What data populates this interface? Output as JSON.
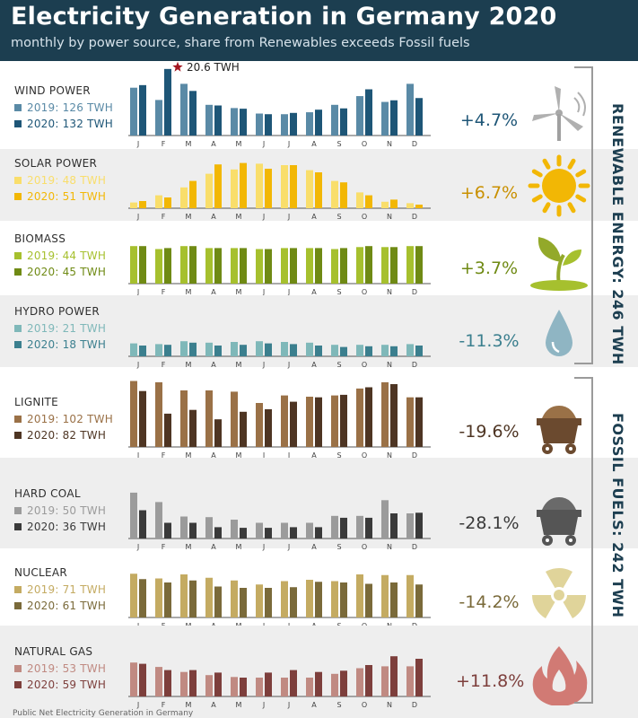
{
  "title": "Electricity Generation in Germany  2020",
  "subtitle": "monthly by power source, share from Renewables exceeds Fossil fuels",
  "footnote": "Public Net Electricity Generation in Germany",
  "groups": {
    "renewable": "RENEWABLE ENERGY: 246 TWH",
    "fossil": "FOSSIL FUELS: 242 TWH"
  },
  "peak_annotation": "20.6 TWH",
  "month_labels": [
    "J",
    "F",
    "M",
    "A",
    "M",
    "J",
    "J",
    "A",
    "S",
    "O",
    "N",
    "D"
  ],
  "colors": {
    "header": "#1c3e50",
    "star": "#a31621"
  },
  "chart_data": {
    "type": "bar",
    "title": "Electricity Generation in Germany  2020",
    "subtitle": "monthly by power source, share from Renewables exceeds Fossil fuels",
    "categories": [
      "J",
      "F",
      "M",
      "A",
      "M",
      "J",
      "J",
      "A",
      "S",
      "O",
      "N",
      "D"
    ],
    "panels": [
      {
        "name": "WIND POWER",
        "change": "+4.7%",
        "icon": "wind-turbine-icon",
        "color2019": "#5a8aa6",
        "color2020": "#1e5677",
        "pctColor": "#1e5677",
        "series": [
          {
            "name": "2019: 126 TWH",
            "values": [
              14.8,
              11.0,
              16.0,
              9.5,
              8.5,
              6.8,
              6.6,
              7.2,
              9.5,
              12.2,
              10.4,
              16.0
            ]
          },
          {
            "name": "2020: 132 TWH",
            "values": [
              15.6,
              20.6,
              13.8,
              9.3,
              8.3,
              6.6,
              7.0,
              8.0,
              8.4,
              14.3,
              10.9,
              11.6
            ]
          }
        ]
      },
      {
        "name": "SOLAR POWER",
        "change": "+6.7%",
        "icon": "sun-icon",
        "color2019": "#f9de6b",
        "color2020": "#f2b705",
        "pctColor": "#c99000",
        "series": [
          {
            "name": "2019: 48 TWH",
            "values": [
              0.8,
              1.8,
              2.9,
              4.8,
              5.4,
              6.2,
              6.0,
              5.3,
              3.8,
              2.2,
              0.9,
              0.7
            ]
          },
          {
            "name": "2020: 51 TWH",
            "values": [
              1.0,
              1.5,
              3.8,
              6.1,
              6.3,
              5.5,
              6.0,
              5.0,
              3.6,
              1.8,
              1.2,
              0.5
            ]
          }
        ]
      },
      {
        "name": "BIOMASS",
        "change": "+3.7%",
        "icon": "sprout-icon",
        "color2019": "#a6c02e",
        "color2020": "#6f8a14",
        "pctColor": "#6f8a14",
        "series": [
          {
            "name": "2019: 44 TWH",
            "values": [
              3.8,
              3.5,
              3.8,
              3.6,
              3.6,
              3.5,
              3.6,
              3.6,
              3.5,
              3.7,
              3.7,
              3.8
            ]
          },
          {
            "name": "2020: 45 TWH",
            "values": [
              3.8,
              3.6,
              3.8,
              3.6,
              3.6,
              3.5,
              3.6,
              3.6,
              3.6,
              3.8,
              3.7,
              3.8
            ]
          }
        ]
      },
      {
        "name": "HYDRO POWER",
        "change": "-11.3%",
        "icon": "water-drop-icon",
        "color2019": "#7fb8b9",
        "color2020": "#3b7f8e",
        "pctColor": "#3b7f8e",
        "series": [
          {
            "name": "2019: 21 TWH",
            "values": [
              1.8,
              1.7,
              2.1,
              1.9,
              2.0,
              2.1,
              2.0,
              1.9,
              1.6,
              1.6,
              1.6,
              1.7
            ]
          },
          {
            "name": "2020: 18 TWH",
            "values": [
              1.5,
              1.6,
              1.9,
              1.5,
              1.6,
              1.8,
              1.7,
              1.5,
              1.3,
              1.4,
              1.4,
              1.5
            ]
          }
        ]
      },
      {
        "name": "LIGNITE",
        "change": "-19.6%",
        "icon": "mine-cart-lignite-icon",
        "color2019": "#9a7147",
        "color2020": "#4e3523",
        "pctColor": "#4e3523",
        "series": [
          {
            "name": "2019: 102 TWH",
            "values": [
              10.5,
              10.3,
              9.0,
              9.0,
              8.8,
              7.0,
              8.2,
              8.0,
              8.2,
              9.3,
              10.3,
              7.9
            ]
          },
          {
            "name": "2020: 82 TWH",
            "values": [
              8.9,
              5.3,
              5.9,
              4.4,
              5.6,
              6.0,
              7.2,
              7.9,
              8.3,
              9.5,
              10.0,
              7.9
            ]
          }
        ]
      },
      {
        "name": "HARD COAL",
        "change": "-28.1%",
        "icon": "mine-cart-coal-icon",
        "color2019": "#9b9b9b",
        "color2020": "#3a3a3a",
        "pctColor": "#3a3a3a",
        "series": [
          {
            "name": "2019: 50 TWH",
            "values": [
              7.3,
              5.8,
              3.5,
              3.4,
              3.0,
              2.5,
              2.5,
              2.5,
              3.6,
              3.6,
              6.1,
              4.0
            ]
          },
          {
            "name": "2020: 36 TWH",
            "values": [
              4.5,
              2.5,
              2.5,
              1.8,
              1.7,
              1.7,
              1.8,
              1.8,
              3.3,
              3.3,
              4.0,
              4.1
            ]
          }
        ]
      },
      {
        "name": "NUCLEAR",
        "change": "-14.2%",
        "icon": "radiation-icon",
        "color2019": "#c4ab62",
        "color2020": "#7a6a3a",
        "pctColor": "#7a6a3a",
        "series": [
          {
            "name": "2019: 71 TWH",
            "values": [
              6.5,
              5.8,
              6.4,
              5.9,
              5.5,
              4.9,
              5.4,
              5.6,
              5.4,
              6.4,
              6.3,
              6.3
            ]
          },
          {
            "name": "2020: 61 TWH",
            "values": [
              5.7,
              5.2,
              5.5,
              4.6,
              4.4,
              4.4,
              4.5,
              5.3,
              5.2,
              5.0,
              5.2,
              4.9
            ]
          }
        ]
      },
      {
        "name": "NATURAL GAS",
        "change": "+11.8%",
        "icon": "flame-icon",
        "color2019": "#c08a82",
        "color2020": "#7d3f3c",
        "pctColor": "#7d3f3c",
        "series": [
          {
            "name": "2019: 53 TWH",
            "values": [
              5.4,
              4.7,
              3.9,
              3.4,
              3.1,
              3.0,
              3.0,
              3.0,
              3.6,
              4.5,
              4.8,
              4.8
            ]
          },
          {
            "name": "2020: 59 TWH",
            "values": [
              5.2,
              4.2,
              4.2,
              3.8,
              3.0,
              3.8,
              4.2,
              3.9,
              4.1,
              5.0,
              6.4,
              6.0
            ]
          }
        ]
      }
    ]
  }
}
